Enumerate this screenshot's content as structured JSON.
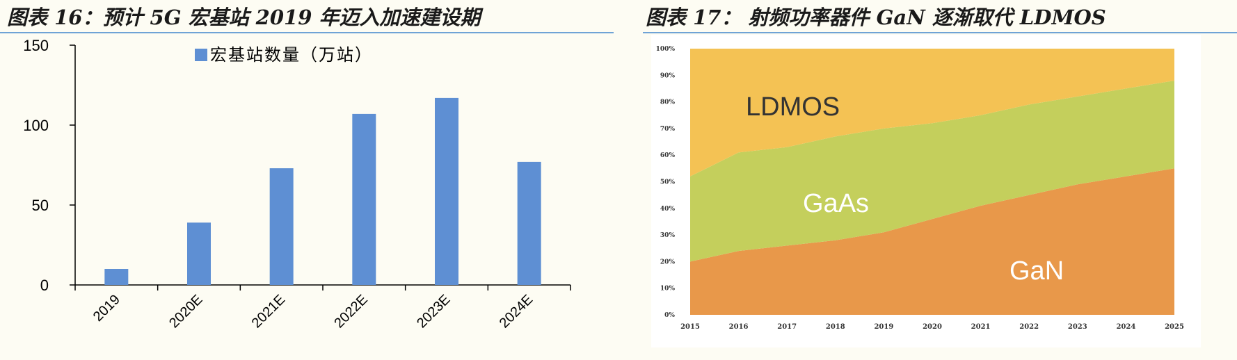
{
  "titles": {
    "left": "图表 16：预计 5G 宏基站 2019 年迈入加速建设期",
    "right": "图表 17： 射频功率器件 GaN 逐渐取代 LDMOS"
  },
  "chart_data": [
    {
      "type": "bar",
      "categories": [
        "2019",
        "2020E",
        "2021E",
        "2022E",
        "2023E",
        "2024E"
      ],
      "series": [
        {
          "name": "宏基站数量（万站）",
          "values": [
            10,
            39,
            73,
            107,
            117,
            77
          ]
        }
      ],
      "ylim": [
        0,
        150
      ],
      "yticks": [
        0,
        50,
        100,
        150
      ],
      "legend": "top-center",
      "grid": false,
      "color": "#5e8fd3"
    },
    {
      "type": "area",
      "stacked": true,
      "percent": true,
      "x": [
        "2015",
        "2016",
        "2017",
        "2018",
        "2019",
        "2020",
        "2021",
        "2022",
        "2023",
        "2024",
        "2025"
      ],
      "series": [
        {
          "name": "GaN",
          "values": [
            20,
            24,
            26,
            28,
            31,
            36,
            41,
            45,
            49,
            52,
            55
          ],
          "color": "#e8984a"
        },
        {
          "name": "GaAs",
          "values": [
            32,
            37,
            37,
            39,
            39,
            36,
            34,
            34,
            33,
            33,
            33
          ],
          "color": "#c4cf5c"
        },
        {
          "name": "LDMOS",
          "values": [
            48,
            39,
            37,
            33,
            30,
            28,
            25,
            21,
            18,
            15,
            12
          ],
          "color": "#f4c254"
        }
      ],
      "ylim": [
        0,
        100
      ],
      "yticks": [
        "0%",
        "10%",
        "20%",
        "30%",
        "40%",
        "50%",
        "60%",
        "70%",
        "80%",
        "90%",
        "100%"
      ],
      "legend": "in-plot labels"
    }
  ]
}
